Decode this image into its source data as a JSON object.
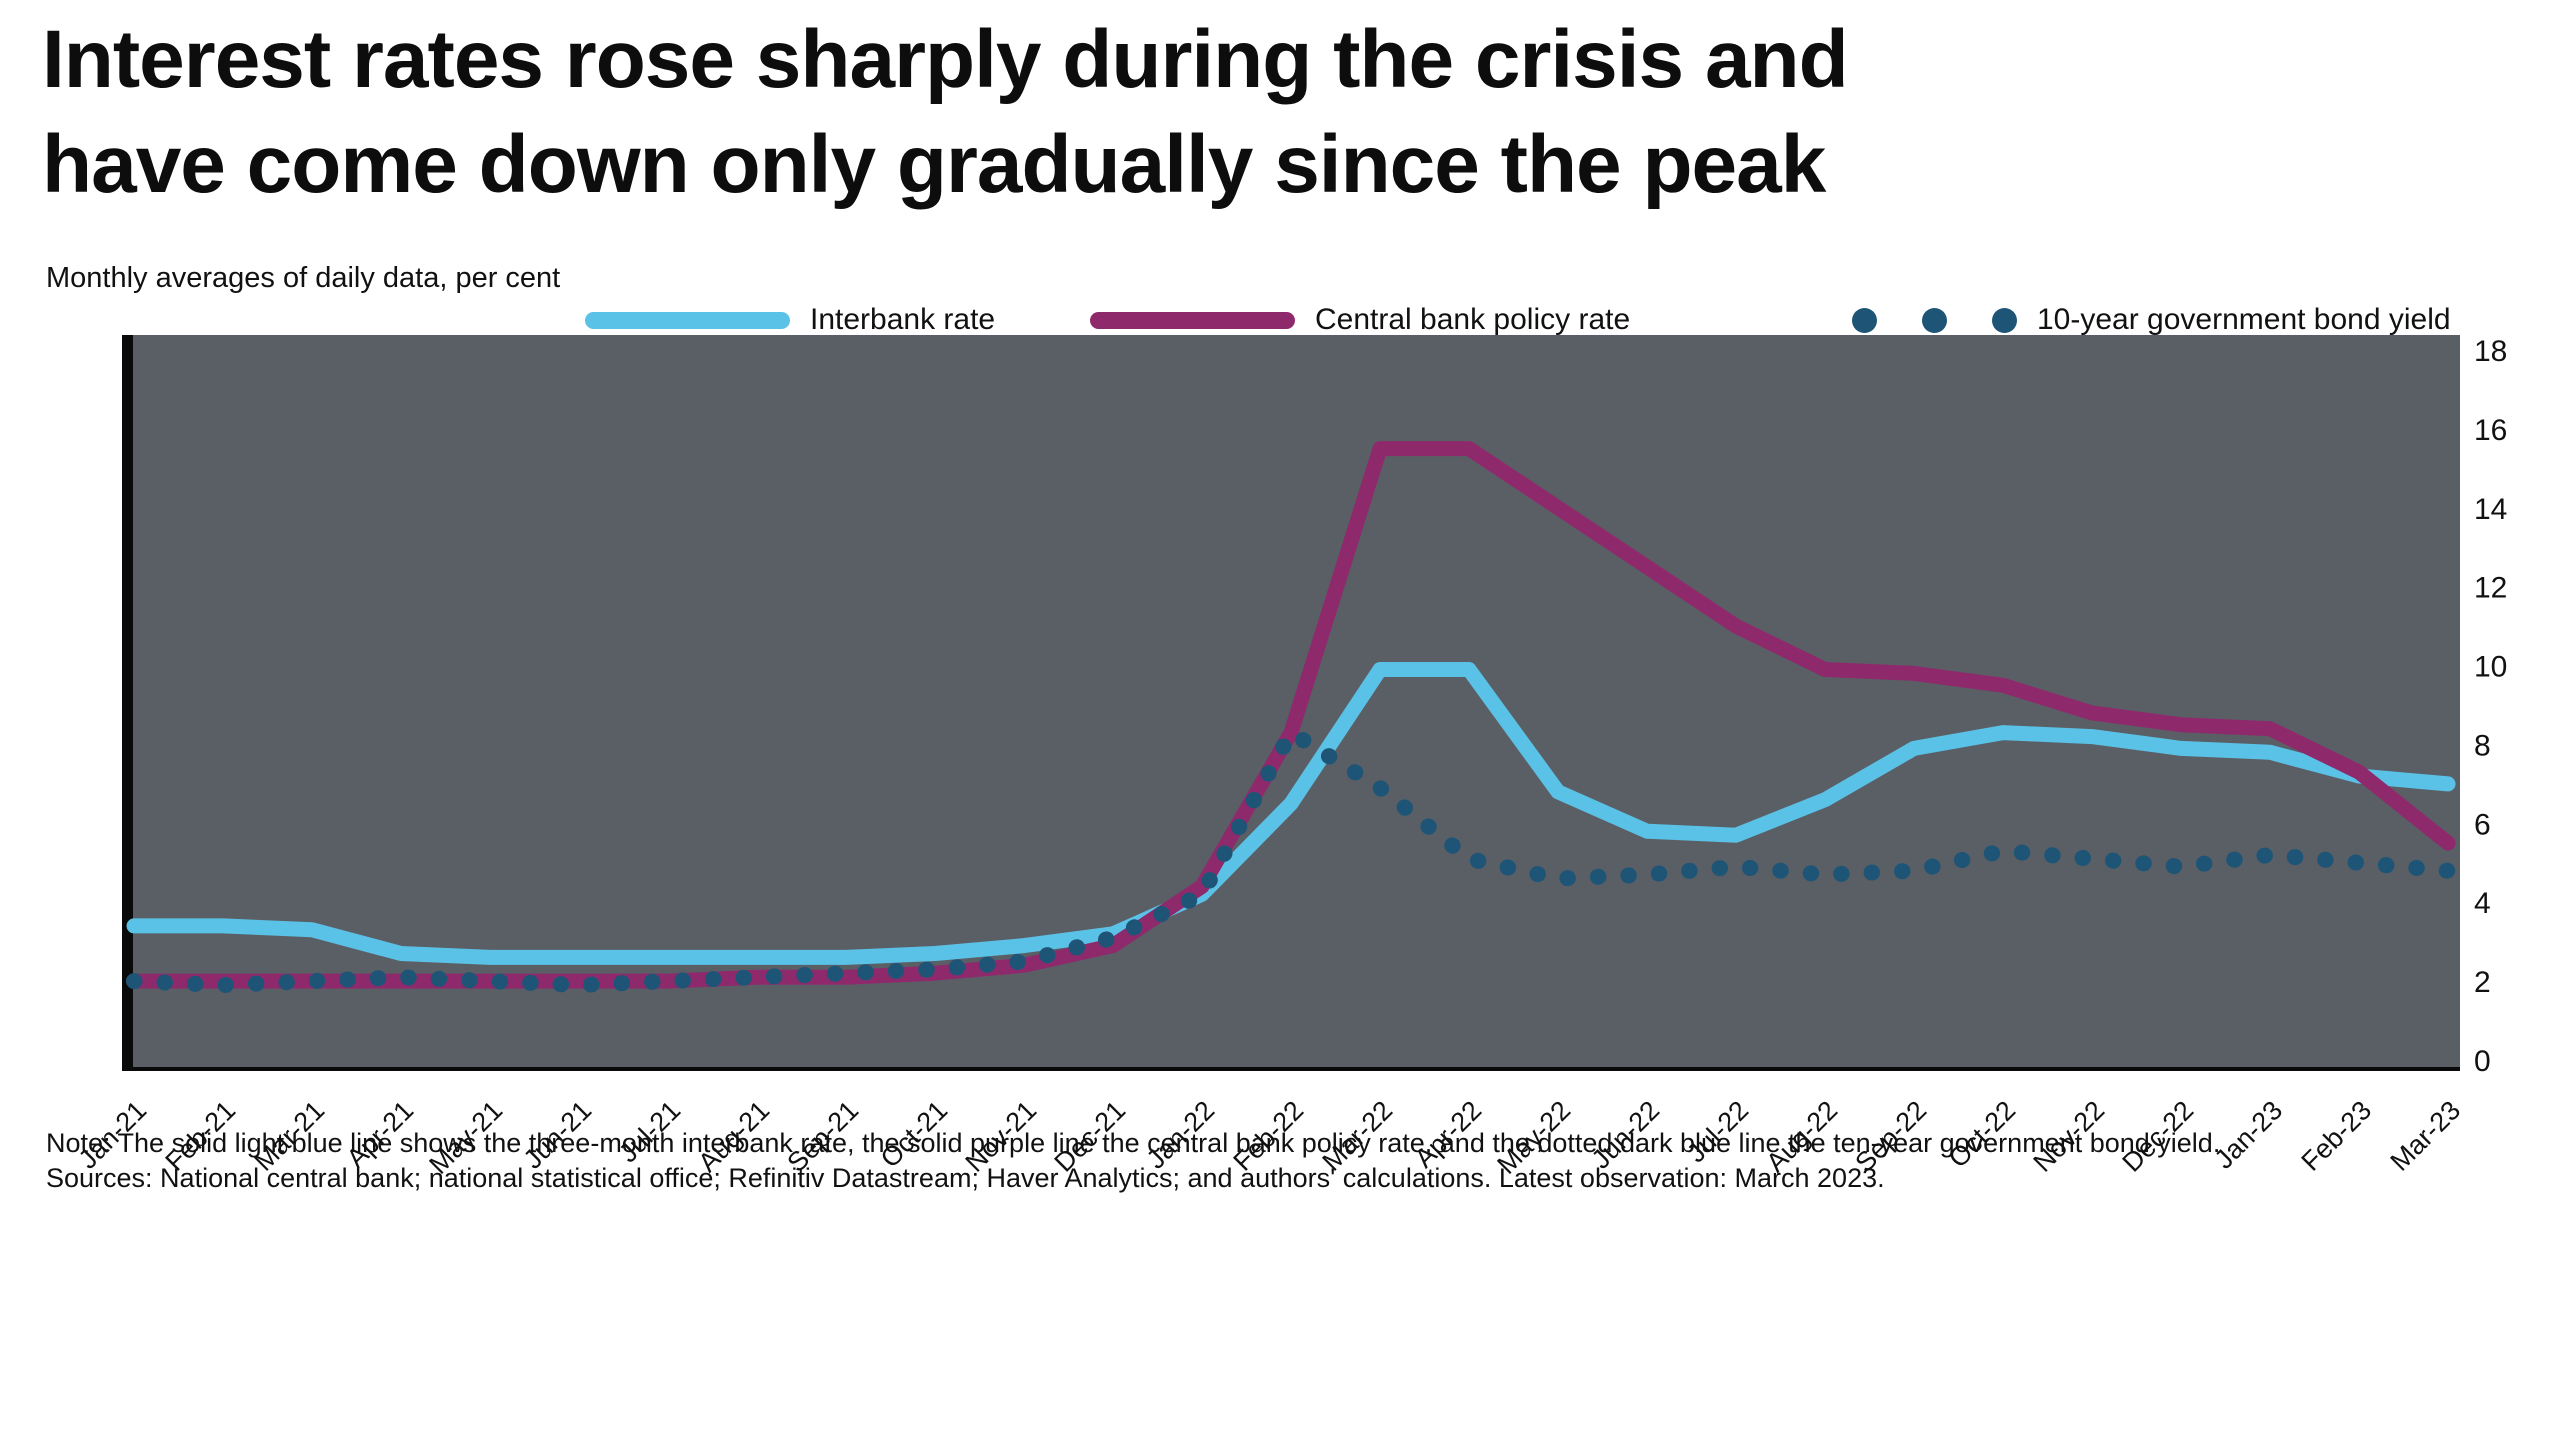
{
  "title": {
    "line1": "Interest rates rose sharply during the crisis and",
    "line2": "have come down only gradually since the peak"
  },
  "subtitle": "Monthly averages of daily data, per cent",
  "legend": [
    {
      "label": "Interbank rate",
      "color": "#5BC2E7",
      "style": "line"
    },
    {
      "label": "Central bank policy rate",
      "color": "#8E2A6C",
      "style": "line"
    },
    {
      "label": "10-year government bond yield",
      "color": "#1E5577",
      "style": "dotted"
    }
  ],
  "footer": {
    "line1": "Note: The solid light blue line shows the three-month interbank rate, the solid purple line the central bank policy rate, and the dotted dark blue line the ten-year government bond yield.",
    "line2": "Sources: National central bank; national statistical office; Refinitiv Datastream; Haver Analytics; and authors' calculations. Latest observation: March 2023."
  },
  "colors": {
    "plot_background": "#5A5F66",
    "axis_spine": "#0a0a0a",
    "text": "#111111",
    "interbank": "#5BC2E7",
    "policy_rate": "#8E2A6C",
    "bond_yield": "#1E5577"
  },
  "chart_data": {
    "type": "line",
    "title": "Interest rates rose sharply during the crisis and have come down only gradually since the peak",
    "xlabel": "",
    "ylabel": "Per cent",
    "ylim": [
      0,
      18
    ],
    "yticks": [
      0,
      2,
      4,
      6,
      8,
      10,
      12,
      14,
      16,
      18
    ],
    "yaxis_side": "right",
    "grid": false,
    "plot_bg": "#5A5F66",
    "xlabel_rotation": -45,
    "legend_position": "top",
    "x": [
      "Jan-21",
      "Feb-21",
      "Mar-21",
      "Apr-21",
      "May-21",
      "Jun-21",
      "Jul-21",
      "Aug-21",
      "Sep-21",
      "Oct-21",
      "Nov-21",
      "Dec-21",
      "Jan-22",
      "Feb-22",
      "Mar-22",
      "Apr-22",
      "May-22",
      "Jun-22",
      "Jul-22",
      "Aug-22",
      "Sep-22",
      "Oct-22",
      "Nov-22",
      "Dec-22",
      "Jan-23",
      "Feb-23",
      "Mar-23"
    ],
    "series": [
      {
        "id": "interbank",
        "name": "Interbank rate",
        "color": "#5BC2E7",
        "style": "solid",
        "values": [
          3.4,
          3.4,
          3.3,
          2.7,
          2.6,
          2.6,
          2.6,
          2.6,
          2.6,
          2.7,
          2.9,
          3.2,
          4.2,
          6.5,
          9.9,
          9.9,
          6.8,
          5.8,
          5.7,
          6.6,
          7.9,
          8.3,
          8.2,
          7.9,
          7.8,
          7.2,
          7.0
        ]
      },
      {
        "id": "policy-rate",
        "name": "Central bank policy rate",
        "color": "#8E2A6C",
        "style": "solid",
        "values": [
          2.0,
          2.0,
          2.0,
          2.0,
          2.0,
          2.0,
          2.0,
          2.1,
          2.1,
          2.2,
          2.4,
          2.9,
          4.4,
          8.3,
          15.5,
          15.5,
          14.0,
          12.5,
          11.0,
          9.9,
          9.8,
          9.5,
          8.8,
          8.5,
          8.4,
          7.3,
          5.5
        ]
      },
      {
        "id": "bond-yield",
        "name": "10-year government bond yield",
        "color": "#1E5577",
        "style": "dotted",
        "values": [
          2.0,
          1.9,
          2.0,
          2.1,
          2.0,
          1.9,
          2.0,
          2.1,
          2.2,
          2.3,
          2.5,
          3.1,
          4.2,
          8.3,
          6.9,
          5.1,
          4.6,
          4.7,
          4.9,
          4.7,
          4.8,
          5.3,
          5.1,
          4.9,
          5.2,
          5.0,
          4.8
        ]
      }
    ]
  }
}
